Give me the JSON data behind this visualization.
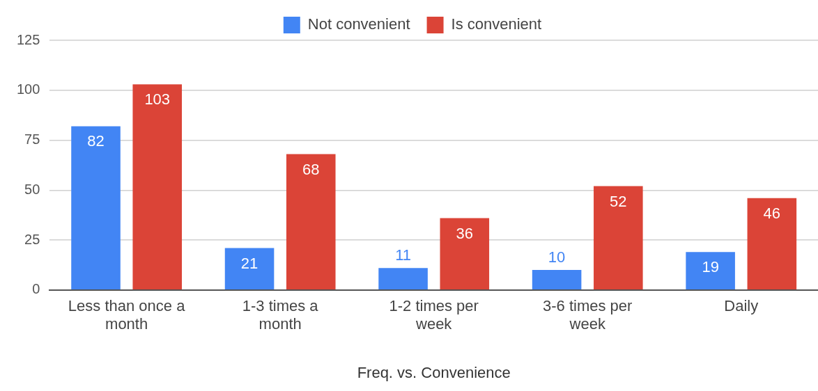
{
  "chart_data": {
    "type": "bar",
    "xlabel": "Freq. vs. Convenience",
    "categories": [
      "Less than once a month",
      "1-3 times a month",
      "1-2 times per week",
      "3-6 times per week",
      "Daily"
    ],
    "series": [
      {
        "name": "Not convenient",
        "color": "#4285f4",
        "values": [
          82,
          21,
          11,
          10,
          19
        ]
      },
      {
        "name": "Is convenient",
        "color": "#db4437",
        "values": [
          103,
          68,
          36,
          52,
          46
        ]
      }
    ],
    "ylim": [
      0,
      125
    ],
    "yticks": [
      0,
      25,
      50,
      75,
      100,
      125
    ],
    "grid": "y",
    "legend": "top",
    "data_labels": true
  }
}
